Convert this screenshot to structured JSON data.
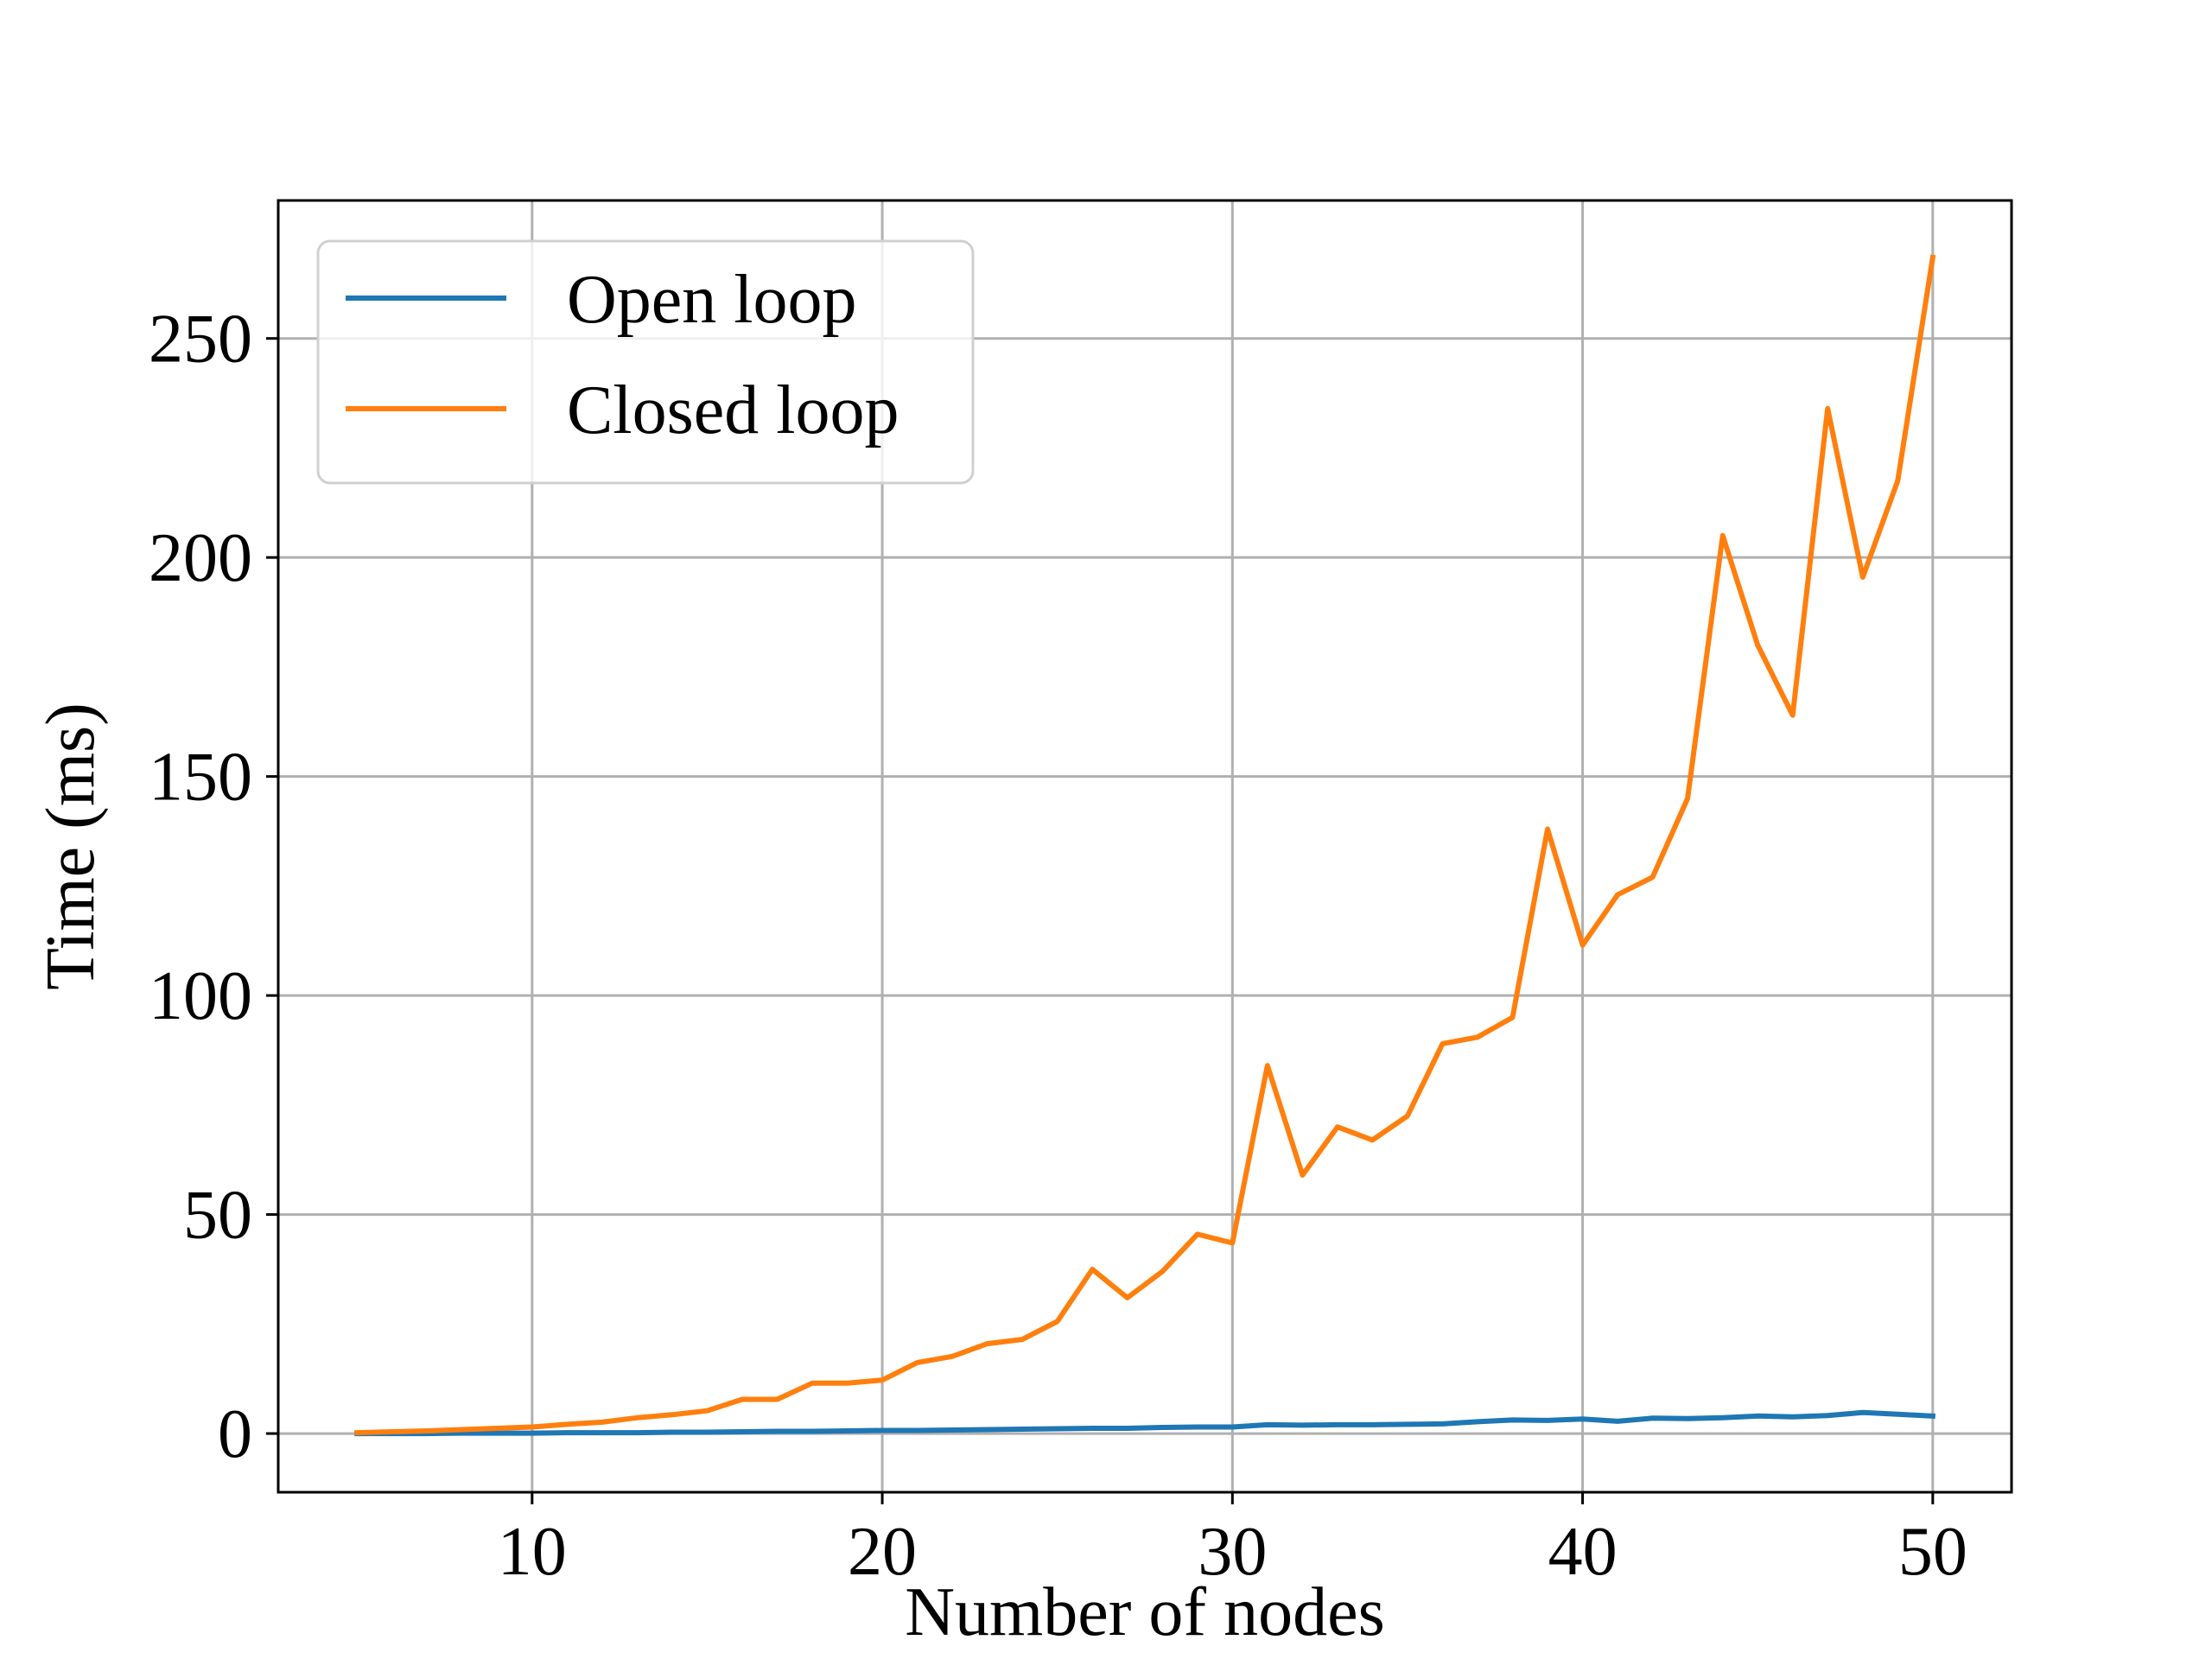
{
  "chart_data": {
    "type": "line",
    "title": "",
    "xlabel": "Number of nodes",
    "ylabel": "Time (ms)",
    "xlim": [
      2.75,
      52.25
    ],
    "ylim": [
      -13.4,
      281.5
    ],
    "xticks": [
      10,
      20,
      30,
      40,
      50
    ],
    "yticks": [
      0,
      50,
      100,
      150,
      200,
      250
    ],
    "grid": true,
    "legend_position": "top-left",
    "x": [
      5,
      6,
      7,
      8,
      9,
      10,
      11,
      12,
      13,
      14,
      15,
      16,
      17,
      18,
      19,
      20,
      21,
      22,
      23,
      24,
      25,
      26,
      27,
      28,
      29,
      30,
      31,
      32,
      33,
      34,
      35,
      36,
      37,
      38,
      39,
      40,
      41,
      42,
      43,
      44,
      45,
      46,
      47,
      48,
      49,
      50
    ],
    "series": [
      {
        "name": "Open loop",
        "color": "#1f77b4",
        "values": [
          0.0,
          0.0,
          0.0,
          0.1,
          0.1,
          0.1,
          0.2,
          0.2,
          0.2,
          0.3,
          0.3,
          0.4,
          0.5,
          0.5,
          0.6,
          0.7,
          0.7,
          0.8,
          0.9,
          1.0,
          1.1,
          1.2,
          1.2,
          1.4,
          1.5,
          1.5,
          2.0,
          1.9,
          2.0,
          2.0,
          2.1,
          2.2,
          2.7,
          3.1,
          3.0,
          3.3,
          2.8,
          3.5,
          3.4,
          3.6,
          4.0,
          3.8,
          4.1,
          4.8,
          4.4,
          4.0
        ]
      },
      {
        "name": "Closed loop",
        "color": "#ff7f0e",
        "values": [
          0.2,
          0.4,
          0.6,
          0.9,
          1.2,
          1.5,
          2.1,
          2.6,
          3.6,
          4.3,
          5.2,
          7.8,
          7.8,
          11.5,
          11.5,
          12.2,
          16.2,
          17.6,
          20.5,
          21.5,
          25.6,
          37.5,
          31.0,
          37.0,
          45.5,
          43.5,
          84.0,
          59.0,
          70.0,
          67.0,
          72.5,
          89.0,
          90.5,
          95.0,
          138.0,
          111.5,
          123.0,
          127.0,
          145.0,
          205.0,
          180.0,
          164.0,
          234.0,
          195.5,
          217.5,
          268.5
        ]
      }
    ]
  }
}
